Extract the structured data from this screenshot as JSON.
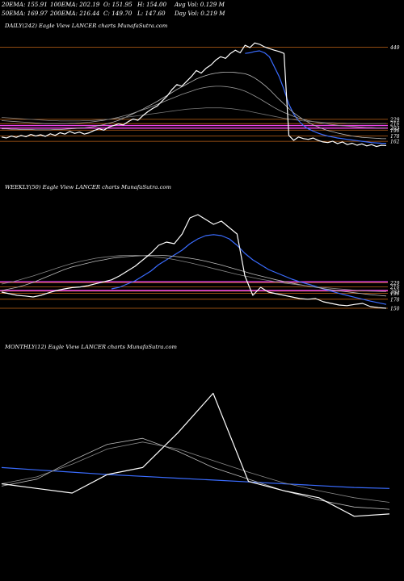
{
  "header": {
    "row1": [
      "20EMA: 155.91",
      "100EMA: 202.19",
      "O: 151.95",
      "H: 154.00",
      "Avg Vol: 0.129 M"
    ],
    "row2": [
      "50EMA: 169.97",
      "200EMA: 216.44",
      "C: 149.70",
      "L: 147.60",
      "Day Vol: 0.219 M"
    ]
  },
  "panels": [
    {
      "title": "DAILY(242) Eagle   View  LANCER charts MunafaSutra.com"
    },
    {
      "title": "WEEKLY(50) Eagle   View  LANCER charts MunafaSutra.com"
    },
    {
      "title": "MONTHLY(12) Eagle   View  LANCER charts MunafaSutra.com"
    }
  ],
  "colors": {
    "price": "#ffffff",
    "ema_fast": "#3a6cff",
    "ema": "#bbbbbb",
    "level": "#c06418",
    "magenta": "#ee44ee"
  },
  "chart_data": [
    {
      "type": "line",
      "title": "DAILY(242) Eagle   View  LANCER charts MunafaSutra.com",
      "ylim": [
        145,
        470
      ],
      "level_labels": [
        "449",
        "229",
        "216",
        "203",
        "196",
        "178",
        "162"
      ],
      "levels": [
        449,
        229,
        216,
        203,
        196,
        178,
        162
      ],
      "magenta_levels": [
        202,
        210
      ],
      "series": [
        {
          "role": "price",
          "color": "#ffffff",
          "values": [
            175,
            172,
            178,
            174,
            180,
            176,
            183,
            178,
            182,
            177,
            185,
            180,
            188,
            184,
            192,
            186,
            190,
            184,
            188,
            195,
            200,
            196,
            205,
            210,
            215,
            212,
            222,
            230,
            226,
            240,
            252,
            262,
            270,
            285,
            300,
            320,
            335,
            330,
            345,
            360,
            378,
            370,
            385,
            395,
            410,
            420,
            415,
            430,
            440,
            432,
            455,
            448,
            462,
            458,
            450,
            445,
            440,
            436,
            430,
            180,
            165,
            175,
            170,
            168,
            172,
            165,
            160,
            158,
            162,
            155,
            160,
            152,
            156,
            150,
            154,
            148,
            152,
            146,
            150,
            149
          ]
        },
        {
          "role": "ema",
          "color": "#3a6cff",
          "values": [
            null,
            null,
            null,
            null,
            null,
            null,
            null,
            null,
            null,
            null,
            null,
            null,
            null,
            null,
            null,
            null,
            null,
            null,
            null,
            null,
            null,
            null,
            null,
            null,
            null,
            null,
            null,
            null,
            null,
            null,
            null,
            null,
            null,
            null,
            null,
            null,
            null,
            null,
            null,
            null,
            null,
            null,
            null,
            null,
            null,
            null,
            null,
            null,
            null,
            null,
            430,
            432,
            436,
            438,
            432,
            420,
            390,
            360,
            320,
            275,
            245,
            225,
            210,
            200,
            193,
            187,
            182,
            178,
            175,
            172,
            170,
            168,
            166,
            164,
            162,
            160,
            158,
            157,
            156,
            155.91
          ]
        },
        {
          "role": "ema",
          "color": "#bbbbbb",
          "values": [
            200,
            200,
            199,
            199,
            198,
            198,
            198,
            197,
            197,
            197,
            197,
            198,
            198,
            199,
            200,
            201,
            202,
            203,
            205,
            207,
            210,
            213,
            217,
            221,
            226,
            232,
            239,
            246,
            253,
            260,
            268,
            276,
            284,
            293,
            302,
            311,
            320,
            328,
            336,
            344,
            352,
            358,
            363,
            367,
            370,
            372,
            373,
            373,
            372,
            370,
            368,
            363,
            355,
            345,
            333,
            320,
            305,
            290,
            276,
            262,
            249,
            238,
            228,
            220,
            212,
            206,
            200,
            195,
            191,
            187,
            184,
            181,
            178,
            176,
            174,
            173,
            172,
            171,
            170,
            169.97
          ]
        },
        {
          "role": "ema",
          "color": "#999999",
          "values": [
            225,
            224,
            223,
            222,
            221,
            220,
            219,
            218,
            217,
            216,
            216,
            216,
            216,
            216,
            217,
            217,
            218,
            219,
            220,
            222,
            224,
            226,
            229,
            232,
            235,
            239,
            243,
            248,
            253,
            258,
            263,
            269,
            275,
            281,
            287,
            293,
            299,
            305,
            310,
            315,
            320,
            324,
            327,
            329,
            330,
            330,
            329,
            327,
            324,
            320,
            315,
            308,
            300,
            292,
            283,
            274,
            265,
            257,
            250,
            244,
            238,
            233,
            229,
            225,
            222,
            219,
            217,
            215,
            213,
            211,
            209,
            208,
            207,
            206,
            205,
            204,
            204,
            203,
            203,
            202.19
          ]
        },
        {
          "role": "ema",
          "color": "#777777",
          "values": [
            235,
            234,
            233,
            232,
            231,
            230,
            229,
            228,
            227,
            226,
            225,
            225,
            224,
            224,
            224,
            224,
            224,
            225,
            225,
            226,
            227,
            228,
            229,
            231,
            232,
            234,
            236,
            238,
            240,
            242,
            244,
            246,
            248,
            250,
            252,
            254,
            256,
            258,
            260,
            261,
            262,
            263,
            264,
            264,
            264,
            264,
            263,
            262,
            260,
            258,
            256,
            253,
            250,
            247,
            244,
            241,
            238,
            235,
            232,
            230,
            228,
            226,
            224,
            223,
            222,
            221,
            220,
            219,
            219,
            218,
            218,
            217,
            217,
            217,
            216,
            216,
            216,
            216,
            216,
            216.44
          ]
        }
      ]
    },
    {
      "type": "line",
      "title": "WEEKLY(50) Eagle   View  LANCER charts MunafaSutra.com",
      "ylim": [
        130,
        470
      ],
      "level_labels": [
        "229",
        "216",
        "203",
        "196",
        "178",
        "150"
      ],
      "levels": [
        229,
        216,
        203,
        196,
        178,
        150
      ],
      "magenta_levels": [
        232,
        205
      ],
      "series": [
        {
          "role": "price",
          "color": "#ffffff",
          "values": [
            200,
            195,
            190,
            188,
            185,
            190,
            198,
            205,
            210,
            214,
            216,
            220,
            226,
            232,
            238,
            250,
            265,
            280,
            300,
            320,
            345,
            355,
            350,
            380,
            430,
            440,
            425,
            410,
            420,
            400,
            380,
            250,
            190,
            215,
            200,
            195,
            190,
            185,
            180,
            178,
            180,
            170,
            165,
            160,
            158,
            162,
            165,
            155,
            152,
            150
          ]
        },
        {
          "role": "ema",
          "color": "#3a6cff",
          "values": [
            null,
            null,
            null,
            null,
            null,
            null,
            null,
            null,
            null,
            null,
            null,
            null,
            null,
            null,
            210,
            215,
            225,
            235,
            250,
            265,
            285,
            300,
            315,
            330,
            350,
            365,
            375,
            378,
            375,
            365,
            345,
            320,
            300,
            285,
            270,
            260,
            250,
            240,
            232,
            225,
            218,
            210,
            203,
            196,
            190,
            184,
            178,
            172,
            167,
            162
          ]
        },
        {
          "role": "ema",
          "color": "#bbbbbb",
          "values": [
            205,
            210,
            215,
            222,
            230,
            240,
            250,
            260,
            270,
            278,
            284,
            290,
            296,
            300,
            305,
            308,
            310,
            312,
            313,
            314,
            314,
            313,
            311,
            308,
            305,
            301,
            296,
            290,
            284,
            277,
            270,
            263,
            256,
            250,
            244,
            238,
            233,
            228,
            223,
            219,
            215,
            211,
            207,
            204,
            201,
            198,
            195,
            192,
            190,
            188
          ]
        },
        {
          "role": "ema",
          "color": "#888888",
          "values": [
            225,
            230,
            236,
            243,
            250,
            258,
            266,
            274,
            282,
            289,
            295,
            300,
            305,
            308,
            311,
            313,
            314,
            314,
            313,
            311,
            308,
            305,
            301,
            296,
            291,
            285,
            279,
            273,
            267,
            261,
            255,
            250,
            245,
            240,
            236,
            232,
            228,
            225,
            222,
            219,
            216,
            214,
            212,
            210,
            208,
            206,
            204,
            203,
            202,
            201
          ]
        }
      ]
    },
    {
      "type": "line",
      "title": "MONTHLY(12) Eagle   View  LANCER charts MunafaSutra.com",
      "ylim": [
        80,
        480
      ],
      "series": [
        {
          "role": "price",
          "color": "#ffffff",
          "values": [
            220,
            210,
            200,
            240,
            255,
            330,
            415,
            225,
            205,
            190,
            150,
            155
          ]
        },
        {
          "role": "ema",
          "color": "#3a6cff",
          "values": [
            255,
            250,
            245,
            240,
            236,
            232,
            228,
            224,
            220,
            216,
            212,
            210
          ]
        },
        {
          "role": "ema",
          "color": "#bbbbbb",
          "values": [
            215,
            230,
            270,
            305,
            318,
            290,
            255,
            230,
            205,
            185,
            170,
            165
          ]
        },
        {
          "role": "ema",
          "color": "#888888",
          "values": [
            220,
            235,
            262,
            295,
            310,
            295,
            270,
            245,
            222,
            205,
            190,
            180
          ]
        }
      ]
    }
  ]
}
